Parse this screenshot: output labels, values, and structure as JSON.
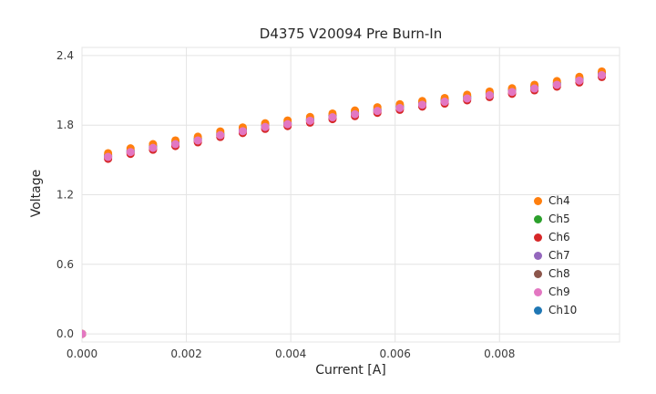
{
  "chart_data": {
    "type": "scatter",
    "title": "D4375 V20094 Pre Burn-In",
    "xlabel": "Current [A]",
    "ylabel": "Voltage",
    "xlim": [
      0.0,
      0.0103
    ],
    "ylim": [
      -0.07,
      2.47
    ],
    "grid": true,
    "grid_color": "#e4e4e4",
    "frame_color": "#e4e4e4",
    "text_color": "#3a3a3a",
    "background_color": "#ffffff",
    "legend_position": "lower right inside",
    "marker_radius": 4.5,
    "x_ticks": {
      "values": [
        0.0,
        0.002,
        0.004,
        0.006,
        0.008
      ],
      "labels": [
        "0.000",
        "0.002",
        "0.004",
        "0.006",
        "0.008"
      ]
    },
    "y_ticks": {
      "values": [
        0.0,
        0.6,
        1.2,
        1.8,
        2.4
      ],
      "labels": [
        "0.0",
        "0.6",
        "1.2",
        "1.8",
        "2.4"
      ]
    },
    "x": [
      0.0,
      0.0005,
      0.00093,
      0.00136,
      0.00179,
      0.00222,
      0.00265,
      0.00308,
      0.00351,
      0.00394,
      0.00437,
      0.0048,
      0.00523,
      0.00566,
      0.00609,
      0.00652,
      0.00695,
      0.00738,
      0.00781,
      0.00824,
      0.00867,
      0.0091,
      0.00953,
      0.00996
    ],
    "base_values": [
      0.0,
      1.53,
      1.572,
      1.608,
      1.64,
      1.672,
      1.718,
      1.752,
      1.788,
      1.812,
      1.842,
      1.872,
      1.898,
      1.926,
      1.952,
      1.98,
      2.006,
      2.034,
      2.062,
      2.09,
      2.12,
      2.152,
      2.188,
      2.235
    ],
    "series": [
      {
        "name": "Ch4",
        "color": "#ff7f0e",
        "offset": 0.028
      },
      {
        "name": "Ch5",
        "color": "#2ca02c",
        "offset": 0.014
      },
      {
        "name": "Ch6",
        "color": "#d62728",
        "offset": -0.02
      },
      {
        "name": "Ch7",
        "color": "#9467bd",
        "offset": 0.006
      },
      {
        "name": "Ch8",
        "color": "#8c564b",
        "offset": -0.008
      },
      {
        "name": "Ch9",
        "color": "#e377c2",
        "offset": -0.004
      },
      {
        "name": "Ch10",
        "color": "#1f77b4",
        "offset": 0.0
      }
    ],
    "render_order": [
      "Ch10",
      "Ch5",
      "Ch8",
      "Ch7",
      "Ch6",
      "Ch4",
      "Ch9"
    ]
  }
}
